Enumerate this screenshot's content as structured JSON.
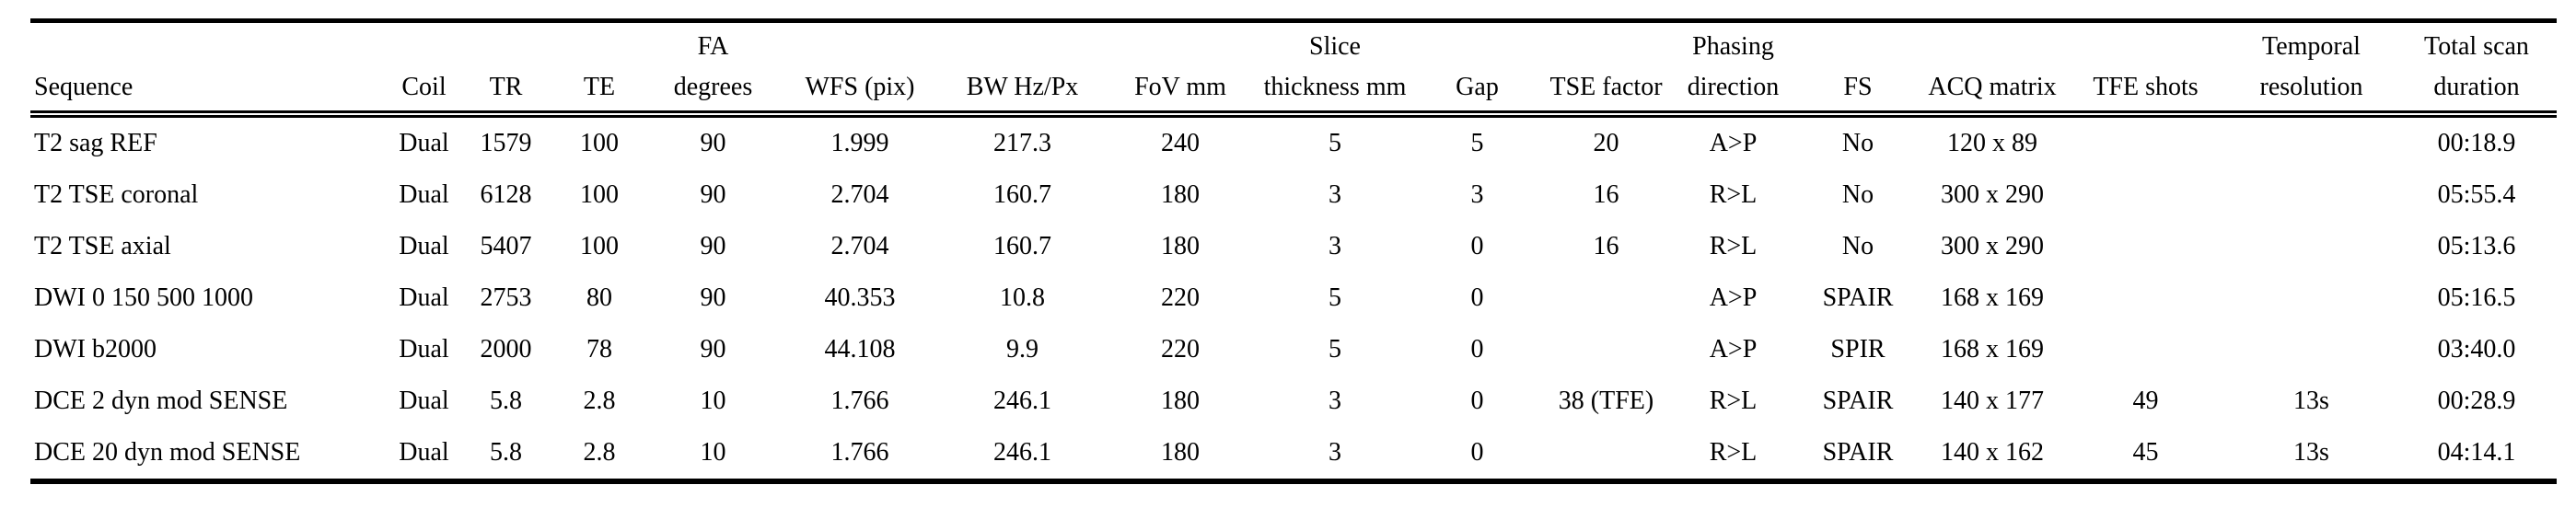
{
  "styles": {
    "background": "#ffffff",
    "text_color": "#000000",
    "rule_color": "#000000"
  },
  "table": {
    "columns": [
      {
        "id": "sequence",
        "label": "Sequence"
      },
      {
        "id": "coil",
        "label": "Coil"
      },
      {
        "id": "tr",
        "label": "TR"
      },
      {
        "id": "te",
        "label": "TE"
      },
      {
        "id": "fa-degrees",
        "label": "FA\ndegrees"
      },
      {
        "id": "wfs-pix",
        "label": "WFS (pix)"
      },
      {
        "id": "bw-hz-px",
        "label": "BW Hz/Px"
      },
      {
        "id": "fov-mm",
        "label": "FoV mm"
      },
      {
        "id": "slice-thickness-mm",
        "label": "Slice\nthickness mm"
      },
      {
        "id": "gap",
        "label": "Gap"
      },
      {
        "id": "tse-factor",
        "label": "TSE factor"
      },
      {
        "id": "phasing-direction",
        "label": "Phasing\ndirection"
      },
      {
        "id": "fs",
        "label": "FS"
      },
      {
        "id": "acq-matrix",
        "label": "ACQ matrix"
      },
      {
        "id": "tfe-shots",
        "label": "TFE shots"
      },
      {
        "id": "temporal-resolution",
        "label": "Temporal\nresolution"
      },
      {
        "id": "total-scan-duration",
        "label": "Total scan\nduration"
      }
    ],
    "rows": [
      [
        "T2 sag REF",
        "Dual",
        "1579",
        "100",
        "90",
        "1.999",
        "217.3",
        "240",
        "5",
        "5",
        "20",
        "A>P",
        "No",
        "120 x 89",
        "",
        "",
        "00:18.9"
      ],
      [
        "T2 TSE coronal",
        "Dual",
        "6128",
        "100",
        "90",
        "2.704",
        "160.7",
        "180",
        "3",
        "3",
        "16",
        "R>L",
        "No",
        "300 x 290",
        "",
        "",
        "05:55.4"
      ],
      [
        "T2 TSE axial",
        "Dual",
        "5407",
        "100",
        "90",
        "2.704",
        "160.7",
        "180",
        "3",
        "0",
        "16",
        "R>L",
        "No",
        "300 x 290",
        "",
        "",
        "05:13.6"
      ],
      [
        "DWI 0 150 500 1000",
        "Dual",
        "2753",
        "80",
        "90",
        "40.353",
        "10.8",
        "220",
        "5",
        "0",
        "",
        "A>P",
        "SPAIR",
        "168 x 169",
        "",
        "",
        "05:16.5"
      ],
      [
        "DWI b2000",
        "Dual",
        "2000",
        "78",
        "90",
        "44.108",
        "9.9",
        "220",
        "5",
        "0",
        "",
        "A>P",
        "SPIR",
        "168 x 169",
        "",
        "",
        "03:40.0"
      ],
      [
        "DCE 2 dyn mod SENSE",
        "Dual",
        "5.8",
        "2.8",
        "10",
        "1.766",
        "246.1",
        "180",
        "3",
        "0",
        "38 (TFE)",
        "R>L",
        "SPAIR",
        "140 x 177",
        "49",
        "13s",
        "00:28.9"
      ],
      [
        "DCE 20 dyn mod SENSE",
        "Dual",
        "5.8",
        "2.8",
        "10",
        "1.766",
        "246.1",
        "180",
        "3",
        "0",
        "",
        "R>L",
        "SPAIR",
        "140 x 162",
        "45",
        "13s",
        "04:14.1"
      ]
    ]
  }
}
